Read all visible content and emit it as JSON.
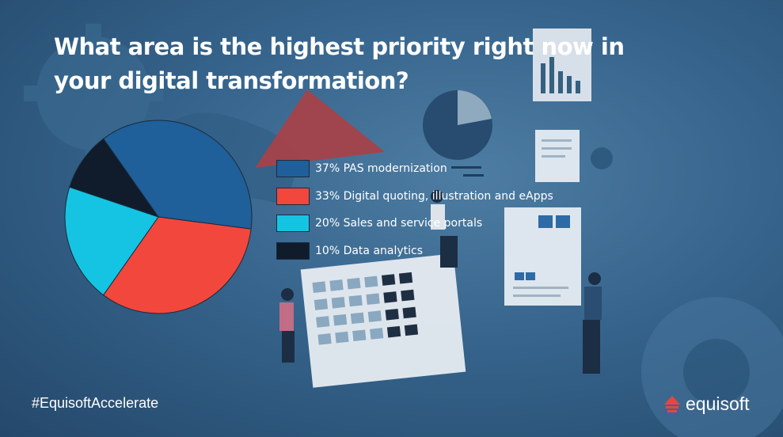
{
  "title": "What area is the highest priority right now in your digital transformation?",
  "chart_data": {
    "type": "pie",
    "title": "What area is the highest priority right now in your digital transformation?",
    "slices": [
      {
        "label": "37% PAS modernization",
        "value": 37,
        "color": "#1f5f9a"
      },
      {
        "label": "33% Digital quoting, illustration and eApps",
        "value": 33,
        "color": "#f2473d"
      },
      {
        "label": "20% Sales and service portals",
        "value": 20,
        "color": "#15c4e3"
      },
      {
        "label": "10% Data analytics",
        "value": 10,
        "color": "#101c2b"
      }
    ],
    "legend_position": "right"
  },
  "footer": {
    "hashtag": "#EquisoftAccelerate",
    "brand": "equisoft"
  },
  "colors": {
    "background": "#36648c",
    "title_text": "#ffffff",
    "brand_mark": "#e8463c"
  },
  "icons": {
    "brand_logo": "equisoft-logo-icon"
  }
}
